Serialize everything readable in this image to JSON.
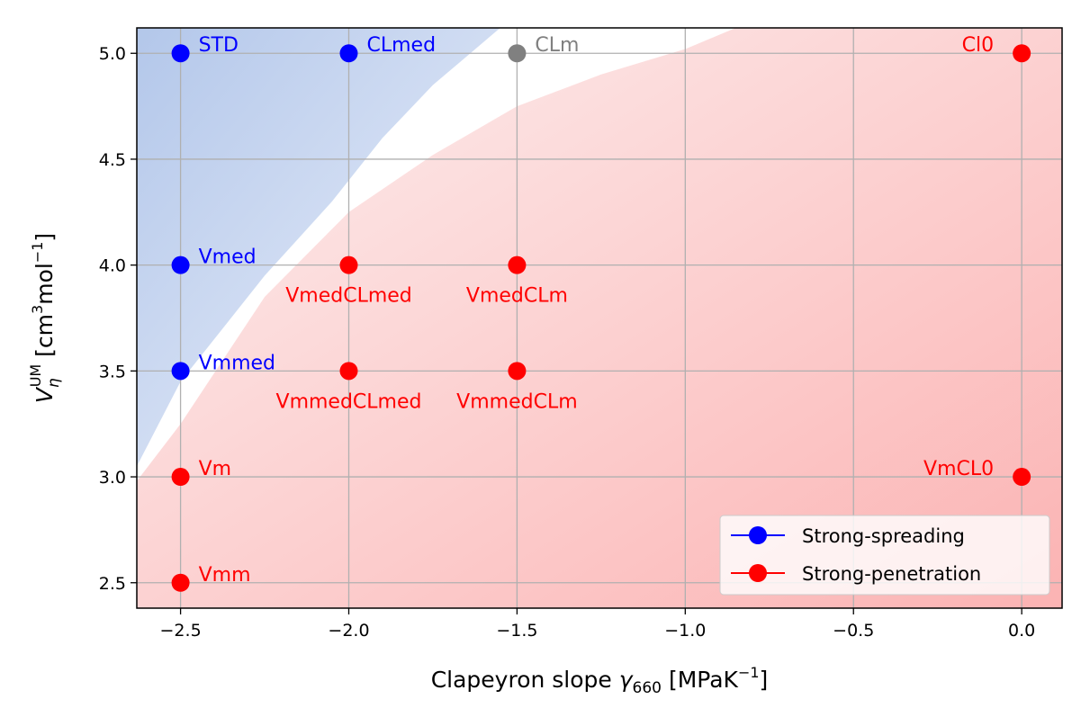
{
  "chart_data": {
    "type": "scatter",
    "title": "",
    "xlabel": {
      "main": "Clapeyron slope ",
      "symbol": "γ",
      "sub": "660",
      "unit_open": " [MPaK",
      "unit_sup": "−1",
      "unit_close": "]"
    },
    "ylabel": {
      "symbol": "V",
      "sub": "η",
      "sup": "UM",
      "unit_open": " [cm",
      "unit_sup1": "3",
      "unit_mid": "mol",
      "unit_sup2": "−1",
      "unit_close": "]"
    },
    "xlim": [
      -2.63,
      0.12
    ],
    "ylim": [
      2.38,
      5.12
    ],
    "x_ticks": [
      -2.5,
      -2.0,
      -1.5,
      -1.0,
      -0.5,
      0.0
    ],
    "x_tick_labels": [
      "−2.5",
      "−2.0",
      "−1.5",
      "−1.0",
      "−0.5",
      "0.0"
    ],
    "y_ticks": [
      2.5,
      3.0,
      3.5,
      4.0,
      4.5,
      5.0
    ],
    "y_tick_labels": [
      "2.5",
      "3.0",
      "3.5",
      "4.0",
      "4.5",
      "5.0"
    ],
    "grid": true,
    "colors": {
      "spreading": "#0000ff",
      "penetration": "#ff0000",
      "neutral": "#808080",
      "blue_region": "#b3c7ea",
      "red_region": "#fbb3b3"
    },
    "points": [
      {
        "name": "STD",
        "x": -2.5,
        "y": 5.0,
        "class": "spreading",
        "label_side": "right"
      },
      {
        "name": "CLmed",
        "x": -2.0,
        "y": 5.0,
        "class": "spreading",
        "label_side": "right"
      },
      {
        "name": "CLm",
        "x": -1.5,
        "y": 5.0,
        "class": "neutral",
        "label_side": "right"
      },
      {
        "name": "Cl0",
        "x": 0.0,
        "y": 5.0,
        "class": "penetration",
        "label_side": "left"
      },
      {
        "name": "Vmed",
        "x": -2.5,
        "y": 4.0,
        "class": "spreading",
        "label_side": "right"
      },
      {
        "name": "VmedCLmed",
        "x": -2.0,
        "y": 4.0,
        "class": "penetration",
        "label_side": "below"
      },
      {
        "name": "VmedCLm",
        "x": -1.5,
        "y": 4.0,
        "class": "penetration",
        "label_side": "below"
      },
      {
        "name": "Vmmed",
        "x": -2.5,
        "y": 3.5,
        "class": "spreading",
        "label_side": "right"
      },
      {
        "name": "VmmedCLmed",
        "x": -2.0,
        "y": 3.5,
        "class": "penetration",
        "label_side": "below"
      },
      {
        "name": "VmmedCLm",
        "x": -1.5,
        "y": 3.5,
        "class": "penetration",
        "label_side": "below"
      },
      {
        "name": "Vm",
        "x": -2.5,
        "y": 3.0,
        "class": "penetration",
        "label_side": "right"
      },
      {
        "name": "VmCL0",
        "x": 0.0,
        "y": 3.0,
        "class": "penetration",
        "label_side": "left"
      },
      {
        "name": "Vmm",
        "x": -2.5,
        "y": 2.5,
        "class": "penetration",
        "label_side": "right"
      }
    ],
    "regions": {
      "spreading_boundary": [
        [
          -2.63,
          3.05
        ],
        [
          -2.5,
          3.45
        ],
        [
          -2.25,
          3.95
        ],
        [
          -2.05,
          4.3
        ],
        [
          -1.9,
          4.6
        ],
        [
          -1.75,
          4.85
        ],
        [
          -1.55,
          5.12
        ]
      ],
      "penetration_boundary": [
        [
          -2.63,
          2.98
        ],
        [
          -2.5,
          3.25
        ],
        [
          -2.25,
          3.85
        ],
        [
          -2.0,
          4.25
        ],
        [
          -1.75,
          4.52
        ],
        [
          -1.5,
          4.75
        ],
        [
          -1.25,
          4.9
        ],
        [
          -1.0,
          5.02
        ],
        [
          -0.85,
          5.12
        ]
      ]
    },
    "legend": {
      "placement": "lower right",
      "entries": [
        {
          "label": "Strong-spreading",
          "class": "spreading"
        },
        {
          "label": "Strong-penetration",
          "class": "penetration"
        }
      ]
    }
  }
}
